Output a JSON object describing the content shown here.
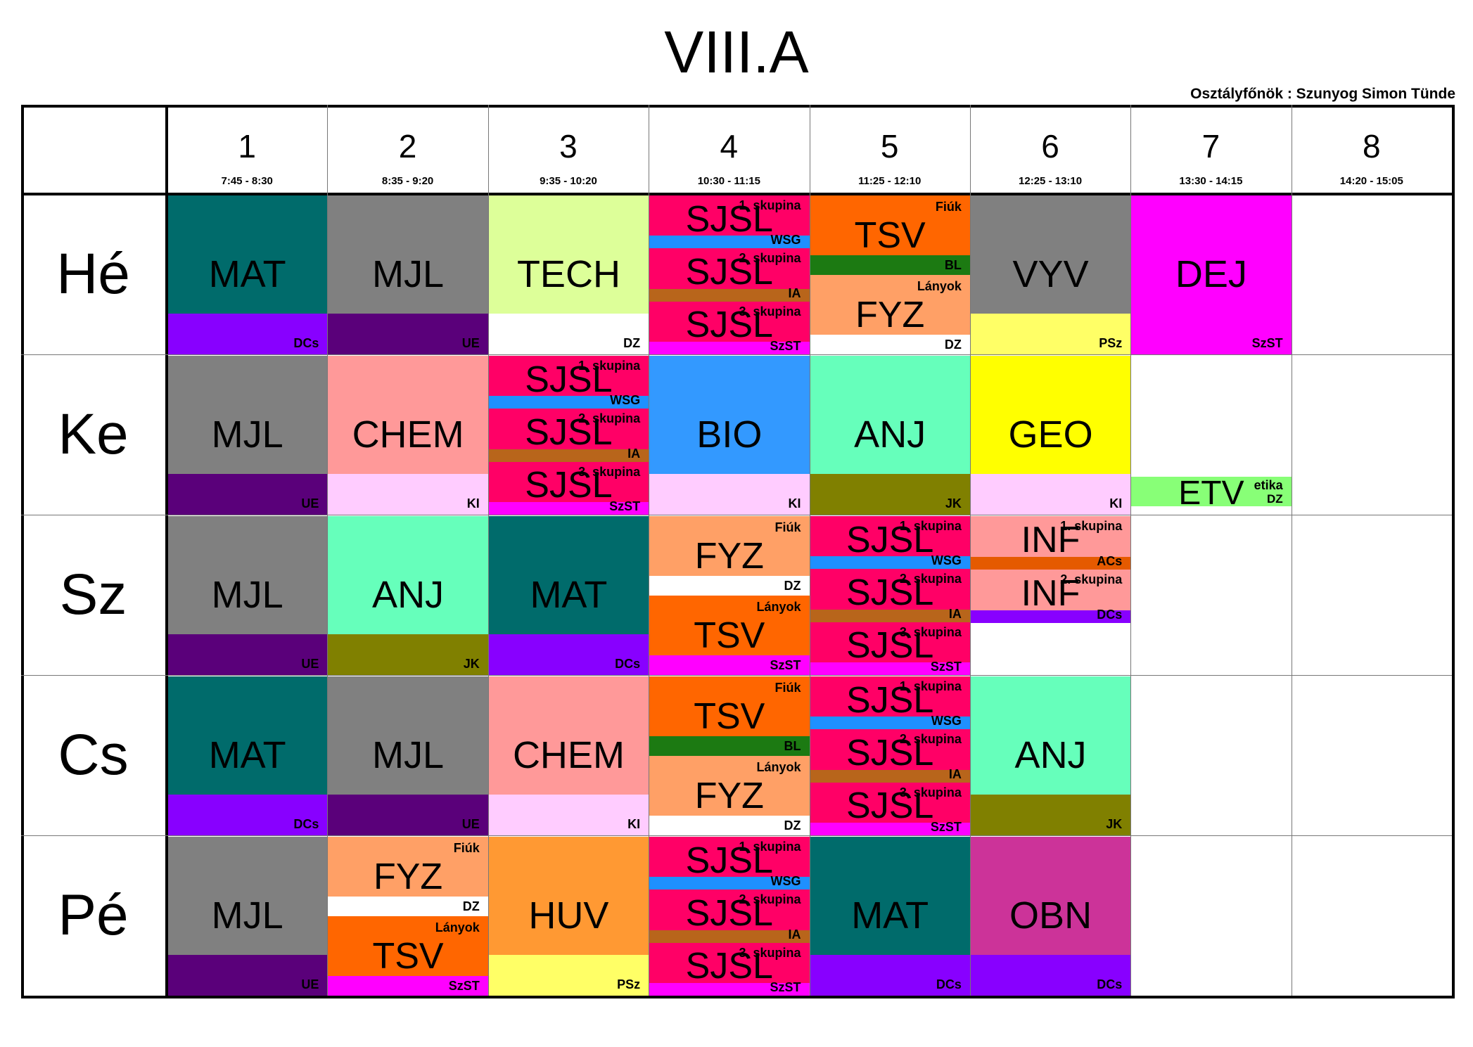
{
  "title": "VIII.A",
  "class_teacher": "Osztályfőnök : Szunyog Simon Tünde",
  "periods": [
    {
      "num": "1",
      "time": "7:45 - 8:30"
    },
    {
      "num": "2",
      "time": "8:35 - 9:20"
    },
    {
      "num": "3",
      "time": "9:35 - 10:20"
    },
    {
      "num": "4",
      "time": "10:30 - 11:15"
    },
    {
      "num": "5",
      "time": "11:25 - 12:10"
    },
    {
      "num": "6",
      "time": "12:25 - 13:10"
    },
    {
      "num": "7",
      "time": "13:30 - 14:15"
    },
    {
      "num": "8",
      "time": "14:20 - 15:05"
    }
  ],
  "days": [
    "Hé",
    "Ke",
    "Sz",
    "Cs",
    "Pé"
  ],
  "colors": {
    "teacher_DCs": "#8800ff",
    "teacher_UE": "#5a007a",
    "teacher_DZ": "#ffffff",
    "teacher_PSz": "#ffff66",
    "teacher_SzST": "#ff00ff",
    "teacher_KI": "#ffccff",
    "teacher_JK": "#808000",
    "teacher_WSG": "#1e90ff",
    "teacher_IA": "#b8651b",
    "teacher_BL": "#1c7a12",
    "teacher_ACs": "#e55a00"
  },
  "schedule": [
    {
      "day": 0,
      "period": 0,
      "kind": "single",
      "subject": "MAT",
      "teacher": "DCs",
      "color": "#006b6b",
      "tcolor": "#8800ff"
    },
    {
      "day": 0,
      "period": 1,
      "kind": "single",
      "subject": "MJL",
      "teacher": "UE",
      "color": "#808080",
      "tcolor": "#5a007a"
    },
    {
      "day": 0,
      "period": 2,
      "kind": "single",
      "subject": "TECH",
      "teacher": "DZ",
      "color": "#ddff99",
      "tcolor": "#ffffff"
    },
    {
      "day": 0,
      "period": 3,
      "kind": "tri",
      "subject": "SJSL",
      "groups": [
        {
          "label": "1. skupina",
          "teacher": "WSG",
          "tcolor": "#1e90ff"
        },
        {
          "label": "2. skupina",
          "teacher": "IA",
          "tcolor": "#b8651b"
        },
        {
          "label": "3. skupina",
          "teacher": "SzST",
          "tcolor": "#ff00ff"
        }
      ],
      "color": "#ff0066"
    },
    {
      "day": 0,
      "period": 4,
      "kind": "duo",
      "parts": [
        {
          "subject": "TSV",
          "label": "Fiúk",
          "teacher": "BL",
          "color": "#ff6600",
          "tcolor": "#1c7a12"
        },
        {
          "subject": "FYZ",
          "label": "Lányok",
          "teacher": "DZ",
          "color": "#ffa066",
          "tcolor": "#ffffff"
        }
      ]
    },
    {
      "day": 0,
      "period": 5,
      "kind": "single",
      "subject": "VYV",
      "teacher": "PSz",
      "color": "#808080",
      "tcolor": "#ffff66"
    },
    {
      "day": 0,
      "period": 6,
      "kind": "single",
      "subject": "DEJ",
      "teacher": "SzST",
      "color": "#ff00ff",
      "tcolor": "#ff00ff"
    },
    {
      "day": 1,
      "period": 0,
      "kind": "single",
      "subject": "MJL",
      "teacher": "UE",
      "color": "#808080",
      "tcolor": "#5a007a"
    },
    {
      "day": 1,
      "period": 1,
      "kind": "single",
      "subject": "CHEM",
      "teacher": "KI",
      "color": "#ff9999",
      "tcolor": "#ffccff"
    },
    {
      "day": 1,
      "period": 2,
      "kind": "tri",
      "subject": "SJSL",
      "groups": [
        {
          "label": "1. skupina",
          "teacher": "WSG",
          "tcolor": "#1e90ff"
        },
        {
          "label": "2. skupina",
          "teacher": "IA",
          "tcolor": "#b8651b"
        },
        {
          "label": "3. skupina",
          "teacher": "SzST",
          "tcolor": "#ff00ff"
        }
      ],
      "color": "#ff0066"
    },
    {
      "day": 1,
      "period": 3,
      "kind": "single",
      "subject": "BIO",
      "teacher": "KI",
      "color": "#3399ff",
      "tcolor": "#ffccff"
    },
    {
      "day": 1,
      "period": 4,
      "kind": "single",
      "subject": "ANJ",
      "teacher": "JK",
      "color": "#66ffbb",
      "tcolor": "#808000"
    },
    {
      "day": 1,
      "period": 5,
      "kind": "single",
      "subject": "GEO",
      "teacher": "KI",
      "color": "#ffff00",
      "tcolor": "#ffccff"
    },
    {
      "day": 1,
      "period": 6,
      "kind": "ethics",
      "subject": "ETV",
      "label": "etika",
      "teacher": "DZ",
      "color": "#88ff77"
    },
    {
      "day": 2,
      "period": 0,
      "kind": "single",
      "subject": "MJL",
      "teacher": "UE",
      "color": "#808080",
      "tcolor": "#5a007a"
    },
    {
      "day": 2,
      "period": 1,
      "kind": "single",
      "subject": "ANJ",
      "teacher": "JK",
      "color": "#66ffbb",
      "tcolor": "#808000"
    },
    {
      "day": 2,
      "period": 2,
      "kind": "single",
      "subject": "MAT",
      "teacher": "DCs",
      "color": "#006b6b",
      "tcolor": "#8800ff"
    },
    {
      "day": 2,
      "period": 3,
      "kind": "duo",
      "parts": [
        {
          "subject": "FYZ",
          "label": "Fiúk",
          "teacher": "DZ",
          "color": "#ffa066",
          "tcolor": "#ffffff"
        },
        {
          "subject": "TSV",
          "label": "Lányok",
          "teacher": "SzST",
          "color": "#ff6600",
          "tcolor": "#ff00ff"
        }
      ]
    },
    {
      "day": 2,
      "period": 4,
      "kind": "tri",
      "subject": "SJSL",
      "groups": [
        {
          "label": "1. skupina",
          "teacher": "WSG",
          "tcolor": "#1e90ff"
        },
        {
          "label": "2. skupina",
          "teacher": "IA",
          "tcolor": "#b8651b"
        },
        {
          "label": "3. skupina",
          "teacher": "SzST",
          "tcolor": "#ff00ff"
        }
      ],
      "color": "#ff0066"
    },
    {
      "day": 2,
      "period": 5,
      "kind": "inf",
      "subject": "INF",
      "groups": [
        {
          "label": "1. skupina",
          "teacher": "ACs",
          "tcolor": "#e55a00"
        },
        {
          "label": "2. skupina",
          "teacher": "DCs",
          "tcolor": "#8800ff"
        }
      ],
      "color": "#ff9999"
    },
    {
      "day": 3,
      "period": 0,
      "kind": "single",
      "subject": "MAT",
      "teacher": "DCs",
      "color": "#006b6b",
      "tcolor": "#8800ff"
    },
    {
      "day": 3,
      "period": 1,
      "kind": "single",
      "subject": "MJL",
      "teacher": "UE",
      "color": "#808080",
      "tcolor": "#5a007a"
    },
    {
      "day": 3,
      "period": 2,
      "kind": "single",
      "subject": "CHEM",
      "teacher": "KI",
      "color": "#ff9999",
      "tcolor": "#ffccff"
    },
    {
      "day": 3,
      "period": 3,
      "kind": "duo",
      "parts": [
        {
          "subject": "TSV",
          "label": "Fiúk",
          "teacher": "BL",
          "color": "#ff6600",
          "tcolor": "#1c7a12"
        },
        {
          "subject": "FYZ",
          "label": "Lányok",
          "teacher": "DZ",
          "color": "#ffa066",
          "tcolor": "#ffffff"
        }
      ]
    },
    {
      "day": 3,
      "period": 4,
      "kind": "tri",
      "subject": "SJSL",
      "groups": [
        {
          "label": "1. skupina",
          "teacher": "WSG",
          "tcolor": "#1e90ff"
        },
        {
          "label": "2. skupina",
          "teacher": "IA",
          "tcolor": "#b8651b"
        },
        {
          "label": "3. skupina",
          "teacher": "SzST",
          "tcolor": "#ff00ff"
        }
      ],
      "color": "#ff0066"
    },
    {
      "day": 3,
      "period": 5,
      "kind": "single",
      "subject": "ANJ",
      "teacher": "JK",
      "color": "#66ffbb",
      "tcolor": "#808000"
    },
    {
      "day": 4,
      "period": 0,
      "kind": "single",
      "subject": "MJL",
      "teacher": "UE",
      "color": "#808080",
      "tcolor": "#5a007a"
    },
    {
      "day": 4,
      "period": 1,
      "kind": "duo",
      "parts": [
        {
          "subject": "FYZ",
          "label": "Fiúk",
          "teacher": "DZ",
          "color": "#ffa066",
          "tcolor": "#ffffff"
        },
        {
          "subject": "TSV",
          "label": "Lányok",
          "teacher": "SzST",
          "color": "#ff6600",
          "tcolor": "#ff00ff"
        }
      ]
    },
    {
      "day": 4,
      "period": 2,
      "kind": "single",
      "subject": "HUV",
      "teacher": "PSz",
      "color": "#ff9933",
      "tcolor": "#ffff66"
    },
    {
      "day": 4,
      "period": 3,
      "kind": "tri",
      "subject": "SJSL",
      "groups": [
        {
          "label": "1. skupina",
          "teacher": "WSG",
          "tcolor": "#1e90ff"
        },
        {
          "label": "2. skupina",
          "teacher": "IA",
          "tcolor": "#b8651b"
        },
        {
          "label": "3. skupina",
          "teacher": "SzST",
          "tcolor": "#ff00ff"
        }
      ],
      "color": "#ff0066"
    },
    {
      "day": 4,
      "period": 4,
      "kind": "single",
      "subject": "MAT",
      "teacher": "DCs",
      "color": "#006b6b",
      "tcolor": "#8800ff"
    },
    {
      "day": 4,
      "period": 5,
      "kind": "single",
      "subject": "OBN",
      "teacher": "DCs",
      "color": "#cc3399",
      "tcolor": "#8800ff"
    }
  ]
}
